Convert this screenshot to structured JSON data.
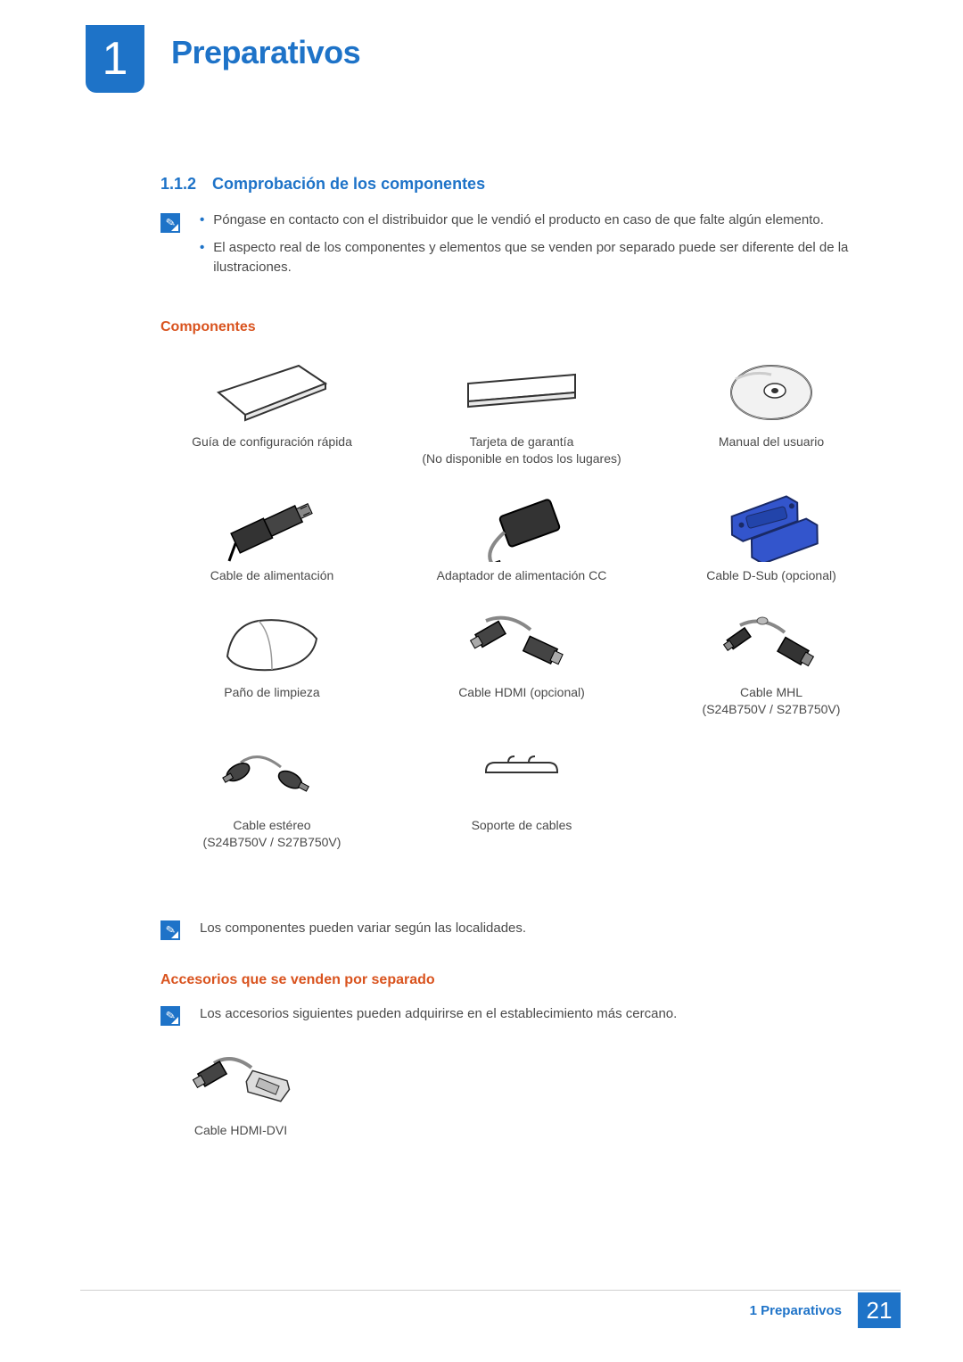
{
  "chapter": {
    "number": "1",
    "title": "Preparativos"
  },
  "section": {
    "number": "1.1.2",
    "title": "Comprobación de los componentes"
  },
  "notes1": [
    "Póngase en contacto con el distribuidor que le vendió el producto en caso de que falte algún elemento.",
    "El aspecto real de los componentes y elementos que se venden por separado puede ser diferente del de la ilustraciones."
  ],
  "subhead_components": "Componentes",
  "components": [
    {
      "label": "Guía de configuración rápida",
      "icon": "sheet-angled"
    },
    {
      "label": "Tarjeta de garantía\n(No disponible en todos los lugares)",
      "icon": "sheet-flat"
    },
    {
      "label": "Manual del usuario",
      "icon": "disc"
    },
    {
      "label": "Cable de alimentación",
      "icon": "power-cord"
    },
    {
      "label": "Adaptador de alimentación CC",
      "icon": "adapter"
    },
    {
      "label": "Cable D-Sub (opcional)",
      "icon": "dsub"
    },
    {
      "label": "Paño de limpieza",
      "icon": "cloth"
    },
    {
      "label": "Cable HDMI (opcional)",
      "icon": "hdmi"
    },
    {
      "label": "Cable MHL\n(S24B750V / S27B750V)",
      "icon": "mhl"
    },
    {
      "label": "Cable estéreo\n(S24B750V / S27B750V)",
      "icon": "stereo"
    },
    {
      "label": "Soporte de cables",
      "icon": "holder"
    }
  ],
  "note2": "Los componentes pueden variar según las localidades.",
  "subhead_accessories": "Accesorios que se venden por separado",
  "note3": "Los accesorios siguientes pueden adquirirse en el establecimiento más cercano.",
  "accessories": [
    {
      "label": "Cable HDMI-DVI",
      "icon": "hdmi-dvi"
    }
  ],
  "footer": {
    "label": "1 Preparativos",
    "page": "21"
  },
  "colors": {
    "brand": "#1e73c8",
    "accent": "#d9531e",
    "text": "#4a4a4a"
  }
}
